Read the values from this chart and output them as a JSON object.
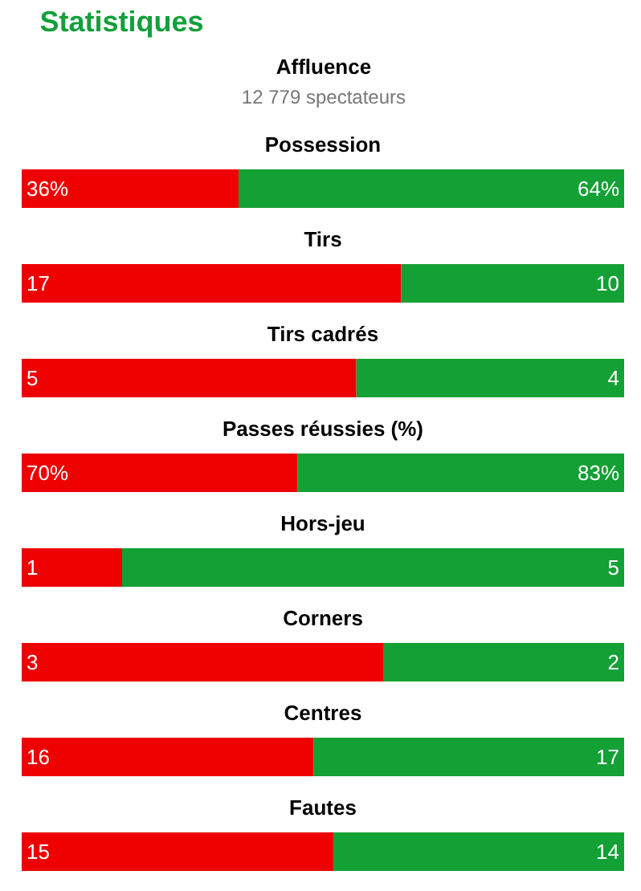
{
  "chart_data": [
    {
      "type": "other",
      "title": "Statistiques",
      "annotations": [
        "Affluence",
        "12 779 spectateurs"
      ]
    },
    {
      "type": "bar",
      "orientation": "horizontal",
      "stacked": true,
      "title": "Possession",
      "categories": [
        null
      ],
      "series": [
        {
          "color": "#ee0000",
          "values": [
            36
          ],
          "value_labels": [
            "36%"
          ]
        },
        {
          "color": "#13a035",
          "values": [
            64
          ],
          "value_labels": [
            "64%"
          ]
        }
      ]
    },
    {
      "type": "bar",
      "orientation": "horizontal",
      "stacked": true,
      "title": "Tirs",
      "categories": [
        null
      ],
      "series": [
        {
          "color": "#ee0000",
          "values": [
            17
          ],
          "value_labels": [
            "17"
          ]
        },
        {
          "color": "#13a035",
          "values": [
            10
          ],
          "value_labels": [
            "10"
          ]
        }
      ]
    },
    {
      "type": "bar",
      "orientation": "horizontal",
      "stacked": true,
      "title": "Tirs cadrés",
      "categories": [
        null
      ],
      "series": [
        {
          "color": "#ee0000",
          "values": [
            5
          ],
          "value_labels": [
            "5"
          ]
        },
        {
          "color": "#13a035",
          "values": [
            4
          ],
          "value_labels": [
            "4"
          ]
        }
      ]
    },
    {
      "type": "bar",
      "orientation": "horizontal",
      "stacked": true,
      "title": "Passes réussies (%)",
      "categories": [
        null
      ],
      "series": [
        {
          "color": "#ee0000",
          "values": [
            70
          ],
          "value_labels": [
            "70%"
          ]
        },
        {
          "color": "#13a035",
          "values": [
            83
          ],
          "value_labels": [
            "83%"
          ]
        }
      ]
    },
    {
      "type": "bar",
      "orientation": "horizontal",
      "stacked": true,
      "title": "Hors-jeu",
      "categories": [
        null
      ],
      "series": [
        {
          "color": "#ee0000",
          "values": [
            1
          ],
          "value_labels": [
            "1"
          ]
        },
        {
          "color": "#13a035",
          "values": [
            5
          ],
          "value_labels": [
            "5"
          ]
        }
      ]
    },
    {
      "type": "bar",
      "orientation": "horizontal",
      "stacked": true,
      "title": "Corners",
      "categories": [
        null
      ],
      "series": [
        {
          "color": "#ee0000",
          "values": [
            3
          ],
          "value_labels": [
            "3"
          ]
        },
        {
          "color": "#13a035",
          "values": [
            2
          ],
          "value_labels": [
            "2"
          ]
        }
      ]
    },
    {
      "type": "bar",
      "orientation": "horizontal",
      "stacked": true,
      "title": "Centres",
      "categories": [
        null
      ],
      "series": [
        {
          "color": "#ee0000",
          "values": [
            16
          ],
          "value_labels": [
            "16"
          ]
        },
        {
          "color": "#13a035",
          "values": [
            17
          ],
          "value_labels": [
            "17"
          ]
        }
      ]
    },
    {
      "type": "bar",
      "orientation": "horizontal",
      "stacked": true,
      "title": "Fautes",
      "categories": [
        null
      ],
      "series": [
        {
          "color": "#ee0000",
          "values": [
            15
          ],
          "value_labels": [
            "15"
          ]
        },
        {
          "color": "#13a035",
          "values": [
            14
          ],
          "value_labels": [
            "14"
          ]
        }
      ]
    }
  ]
}
